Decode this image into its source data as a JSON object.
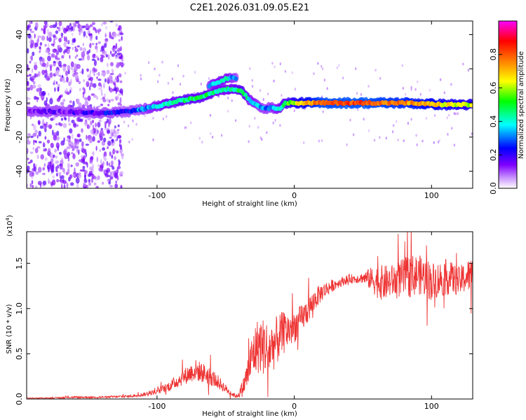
{
  "title": "C2E1.2026.031.09.05.E21",
  "colors": {
    "snr_line": "#ee3333",
    "spectrogram_background": "#ffffff"
  },
  "chart_data": [
    {
      "type": "heatmap",
      "xlabel": "Height of straight line (km)",
      "ylabel": "Frequency (Hz)",
      "xlim": [
        -195,
        130
      ],
      "ylim": [
        -50,
        48
      ],
      "xticks": [
        -100,
        0,
        100
      ],
      "xtick_labels": [
        "-100",
        "0",
        "100"
      ],
      "yticks": [
        -40,
        -20,
        0,
        20,
        40
      ],
      "ytick_labels": [
        "-40",
        "-20",
        "0",
        "20",
        "40"
      ],
      "colorbar": {
        "label": "Normalized spectral amplitude",
        "range": [
          0,
          1
        ],
        "ticks": [
          0.0,
          0.2,
          0.4,
          0.6,
          0.8
        ],
        "tick_labels": [
          "0.0",
          "0.2",
          "0.4",
          "0.6",
          "0.8"
        ],
        "colormap": [
          "#ffffff",
          "#cc99ff",
          "#7f00ff",
          "#0000ff",
          "#00ffff",
          "#00ff00",
          "#ffff00",
          "#ff7f00",
          "#ff0000",
          "#ff00ff"
        ]
      },
      "ridge": {
        "x": [
          -195,
          -170,
          -140,
          -120,
          -100,
          -85,
          -70,
          -60,
          -52,
          -45,
          -38,
          -33,
          -28,
          -22,
          -15,
          -10,
          -7,
          0,
          20,
          50,
          80,
          110,
          130
        ],
        "y": [
          -5,
          -5,
          -6,
          -5,
          -2,
          1,
          3,
          6,
          8,
          8,
          7,
          2,
          -1,
          -3,
          -3,
          -3,
          0,
          0,
          0,
          0,
          0,
          -1,
          -1
        ],
        "amplitude": [
          0.12,
          0.15,
          0.2,
          0.25,
          0.38,
          0.45,
          0.48,
          0.45,
          0.4,
          0.42,
          0.5,
          0.4,
          0.35,
          0.3,
          0.35,
          0.4,
          0.5,
          0.6,
          0.8,
          0.82,
          0.75,
          0.65,
          0.6
        ]
      },
      "secondary_ridge": {
        "x": [
          -62,
          -55,
          -50,
          -46,
          -42
        ],
        "y": [
          10,
          12,
          14,
          15,
          14
        ],
        "amplitude": [
          0.35,
          0.4,
          0.42,
          0.35,
          0.3
        ]
      },
      "noise_region_x": [
        -195,
        -125
      ]
    },
    {
      "type": "line",
      "xlabel": "Height of straight line (km)",
      "ylabel": "SNR (10 * v/v)",
      "ylabel_multiplier": "(x10",
      "ylabel_multiplier_exp": "4",
      "ylabel_multiplier_close": ")",
      "xlim": [
        -195,
        130
      ],
      "ylim": [
        0,
        1.85
      ],
      "xticks": [
        -100,
        0,
        100
      ],
      "xtick_labels": [
        "-100",
        "0",
        "100"
      ],
      "yticks": [
        0.0,
        0.5,
        1.0,
        1.5
      ],
      "ytick_labels": [
        "0.0",
        "0.5",
        "1.0",
        "1.5"
      ],
      "series": [
        {
          "x": [
            -195,
            -180,
            -160,
            -140,
            -120,
            -110,
            -100,
            -90,
            -80,
            -72,
            -65,
            -58,
            -52,
            -46,
            -42,
            -38,
            -34,
            -30,
            -26,
            -22,
            -18,
            -14,
            -10,
            -6,
            -2,
            0,
            5,
            10,
            15,
            20,
            25,
            30,
            35,
            40,
            45,
            50,
            55,
            60,
            65,
            70,
            75,
            80,
            85,
            90,
            95,
            100,
            105,
            110,
            115,
            120,
            125,
            130
          ],
          "y": [
            0.01,
            0.01,
            0.02,
            0.02,
            0.03,
            0.05,
            0.08,
            0.15,
            0.25,
            0.32,
            0.28,
            0.22,
            0.14,
            0.06,
            0.03,
            0.1,
            0.28,
            0.5,
            0.6,
            0.58,
            0.55,
            0.62,
            0.7,
            0.75,
            0.78,
            0.8,
            0.88,
            0.98,
            1.1,
            1.18,
            1.23,
            1.27,
            1.3,
            1.33,
            1.33,
            1.34,
            1.33,
            1.3,
            1.28,
            1.3,
            1.32,
            1.34,
            1.36,
            1.38,
            1.35,
            1.3,
            1.32,
            1.35,
            1.33,
            1.3,
            1.35,
            1.38
          ],
          "spread": [
            0.005,
            0.005,
            0.01,
            0.01,
            0.015,
            0.02,
            0.03,
            0.06,
            0.09,
            0.12,
            0.11,
            0.09,
            0.06,
            0.03,
            0.02,
            0.08,
            0.18,
            0.28,
            0.32,
            0.32,
            0.3,
            0.28,
            0.26,
            0.22,
            0.2,
            0.18,
            0.16,
            0.14,
            0.12,
            0.1,
            0.08,
            0.06,
            0.05,
            0.05,
            0.05,
            0.06,
            0.12,
            0.18,
            0.2,
            0.18,
            0.2,
            0.22,
            0.24,
            0.22,
            0.22,
            0.22,
            0.2,
            0.2,
            0.18,
            0.16,
            0.18,
            0.2
          ]
        }
      ]
    }
  ]
}
